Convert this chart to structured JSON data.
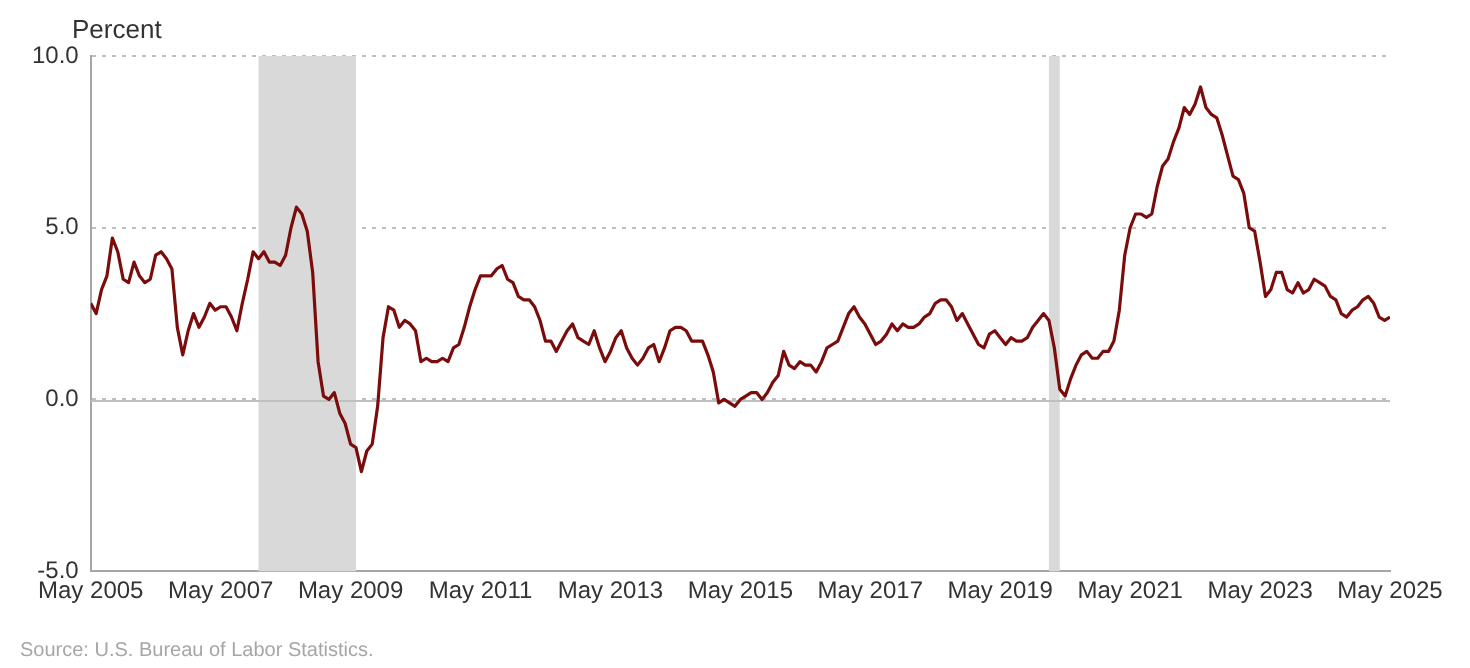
{
  "chart_data": {
    "type": "line",
    "ylabel": "Percent",
    "annotations": [
      "Source: U.S. Bureau of Labor Statistics."
    ],
    "x": [
      "2005-05",
      "2005-06",
      "2005-07",
      "2005-08",
      "2005-09",
      "2005-10",
      "2005-11",
      "2005-12",
      "2006-01",
      "2006-02",
      "2006-03",
      "2006-04",
      "2006-05",
      "2006-06",
      "2006-07",
      "2006-08",
      "2006-09",
      "2006-10",
      "2006-11",
      "2006-12",
      "2007-01",
      "2007-02",
      "2007-03",
      "2007-04",
      "2007-05",
      "2007-06",
      "2007-07",
      "2007-08",
      "2007-09",
      "2007-10",
      "2007-11",
      "2007-12",
      "2008-01",
      "2008-02",
      "2008-03",
      "2008-04",
      "2008-05",
      "2008-06",
      "2008-07",
      "2008-08",
      "2008-09",
      "2008-10",
      "2008-11",
      "2008-12",
      "2009-01",
      "2009-02",
      "2009-03",
      "2009-04",
      "2009-05",
      "2009-06",
      "2009-07",
      "2009-08",
      "2009-09",
      "2009-10",
      "2009-11",
      "2009-12",
      "2010-01",
      "2010-02",
      "2010-03",
      "2010-04",
      "2010-05",
      "2010-06",
      "2010-07",
      "2010-08",
      "2010-09",
      "2010-10",
      "2010-11",
      "2010-12",
      "2011-01",
      "2011-02",
      "2011-03",
      "2011-04",
      "2011-05",
      "2011-06",
      "2011-07",
      "2011-08",
      "2011-09",
      "2011-10",
      "2011-11",
      "2011-12",
      "2012-01",
      "2012-02",
      "2012-03",
      "2012-04",
      "2012-05",
      "2012-06",
      "2012-07",
      "2012-08",
      "2012-09",
      "2012-10",
      "2012-11",
      "2012-12",
      "2013-01",
      "2013-02",
      "2013-03",
      "2013-04",
      "2013-05",
      "2013-06",
      "2013-07",
      "2013-08",
      "2013-09",
      "2013-10",
      "2013-11",
      "2013-12",
      "2014-01",
      "2014-02",
      "2014-03",
      "2014-04",
      "2014-05",
      "2014-06",
      "2014-07",
      "2014-08",
      "2014-09",
      "2014-10",
      "2014-11",
      "2014-12",
      "2015-01",
      "2015-02",
      "2015-03",
      "2015-04",
      "2015-05",
      "2015-06",
      "2015-07",
      "2015-08",
      "2015-09",
      "2015-10",
      "2015-11",
      "2015-12",
      "2016-01",
      "2016-02",
      "2016-03",
      "2016-04",
      "2016-05",
      "2016-06",
      "2016-07",
      "2016-08",
      "2016-09",
      "2016-10",
      "2016-11",
      "2016-12",
      "2017-01",
      "2017-02",
      "2017-03",
      "2017-04",
      "2017-05",
      "2017-06",
      "2017-07",
      "2017-08",
      "2017-09",
      "2017-10",
      "2017-11",
      "2017-12",
      "2018-01",
      "2018-02",
      "2018-03",
      "2018-04",
      "2018-05",
      "2018-06",
      "2018-07",
      "2018-08",
      "2018-09",
      "2018-10",
      "2018-11",
      "2018-12",
      "2019-01",
      "2019-02",
      "2019-03",
      "2019-04",
      "2019-05",
      "2019-06",
      "2019-07",
      "2019-08",
      "2019-09",
      "2019-10",
      "2019-11",
      "2019-12",
      "2020-01",
      "2020-02",
      "2020-03",
      "2020-04",
      "2020-05",
      "2020-06",
      "2020-07",
      "2020-08",
      "2020-09",
      "2020-10",
      "2020-11",
      "2020-12",
      "2021-01",
      "2021-02",
      "2021-03",
      "2021-04",
      "2021-05",
      "2021-06",
      "2021-07",
      "2021-08",
      "2021-09",
      "2021-10",
      "2021-11",
      "2021-12",
      "2022-01",
      "2022-02",
      "2022-03",
      "2022-04",
      "2022-05",
      "2022-06",
      "2022-07",
      "2022-08",
      "2022-09",
      "2022-10",
      "2022-11",
      "2022-12",
      "2023-01",
      "2023-02",
      "2023-03",
      "2023-04",
      "2023-05",
      "2023-06",
      "2023-07",
      "2023-08",
      "2023-09",
      "2023-10",
      "2023-11",
      "2023-12",
      "2024-01",
      "2024-02",
      "2024-03",
      "2024-04",
      "2024-05",
      "2024-06",
      "2024-07",
      "2024-08",
      "2024-09",
      "2024-10",
      "2024-11",
      "2024-12",
      "2025-01",
      "2025-02",
      "2025-03",
      "2025-04",
      "2025-05"
    ],
    "series": [
      {
        "color": "#7b0c0c",
        "values": [
          2.8,
          2.5,
          3.2,
          3.6,
          4.7,
          4.3,
          3.5,
          3.4,
          4.0,
          3.6,
          3.4,
          3.5,
          4.2,
          4.3,
          4.1,
          3.8,
          2.1,
          1.3,
          2.0,
          2.5,
          2.1,
          2.4,
          2.8,
          2.6,
          2.7,
          2.7,
          2.4,
          2.0,
          2.8,
          3.5,
          4.3,
          4.1,
          4.3,
          4.0,
          4.0,
          3.9,
          4.2,
          5.0,
          5.6,
          5.4,
          4.9,
          3.7,
          1.1,
          0.1,
          0.0,
          0.2,
          -0.4,
          -0.7,
          -1.3,
          -1.4,
          -2.1,
          -1.5,
          -1.3,
          -0.2,
          1.8,
          2.7,
          2.6,
          2.1,
          2.3,
          2.2,
          2.0,
          1.1,
          1.2,
          1.1,
          1.1,
          1.2,
          1.1,
          1.5,
          1.6,
          2.1,
          2.7,
          3.2,
          3.6,
          3.6,
          3.6,
          3.8,
          3.9,
          3.5,
          3.4,
          3.0,
          2.9,
          2.9,
          2.7,
          2.3,
          1.7,
          1.7,
          1.4,
          1.7,
          2.0,
          2.2,
          1.8,
          1.7,
          1.6,
          2.0,
          1.5,
          1.1,
          1.4,
          1.8,
          2.0,
          1.5,
          1.2,
          1.0,
          1.2,
          1.5,
          1.6,
          1.1,
          1.5,
          2.0,
          2.1,
          2.1,
          2.0,
          1.7,
          1.7,
          1.7,
          1.3,
          0.8,
          -0.1,
          0.0,
          -0.1,
          -0.2,
          0.0,
          0.1,
          0.2,
          0.2,
          0.0,
          0.2,
          0.5,
          0.7,
          1.4,
          1.0,
          0.9,
          1.1,
          1.0,
          1.0,
          0.8,
          1.1,
          1.5,
          1.6,
          1.7,
          2.1,
          2.5,
          2.7,
          2.4,
          2.2,
          1.9,
          1.6,
          1.7,
          1.9,
          2.2,
          2.0,
          2.2,
          2.1,
          2.1,
          2.2,
          2.4,
          2.5,
          2.8,
          2.9,
          2.9,
          2.7,
          2.3,
          2.5,
          2.2,
          1.9,
          1.6,
          1.5,
          1.9,
          2.0,
          1.8,
          1.6,
          1.8,
          1.7,
          1.7,
          1.8,
          2.1,
          2.3,
          2.5,
          2.3,
          1.5,
          0.3,
          0.1,
          0.6,
          1.0,
          1.3,
          1.4,
          1.2,
          1.2,
          1.4,
          1.4,
          1.7,
          2.6,
          4.2,
          5.0,
          5.4,
          5.4,
          5.3,
          5.4,
          6.2,
          6.8,
          7.0,
          7.5,
          7.9,
          8.5,
          8.3,
          8.6,
          9.1,
          8.5,
          8.3,
          8.2,
          7.7,
          7.1,
          6.5,
          6.4,
          6.0,
          5.0,
          4.9,
          4.0,
          3.0,
          3.2,
          3.7,
          3.7,
          3.2,
          3.1,
          3.4,
          3.1,
          3.2,
          3.5,
          3.4,
          3.3,
          3.0,
          2.9,
          2.5,
          2.4,
          2.6,
          2.7,
          2.9,
          3.0,
          2.8,
          2.4,
          2.3,
          2.4
        ]
      }
    ],
    "xlim": [
      "2005-05",
      "2025-05"
    ],
    "xticks": [
      {
        "value": "2005-05",
        "label": "May 2005"
      },
      {
        "value": "2007-05",
        "label": "May 2007"
      },
      {
        "value": "2009-05",
        "label": "May 2009"
      },
      {
        "value": "2011-05",
        "label": "May 2011"
      },
      {
        "value": "2013-05",
        "label": "May 2013"
      },
      {
        "value": "2015-05",
        "label": "May 2015"
      },
      {
        "value": "2017-05",
        "label": "May 2017"
      },
      {
        "value": "2019-05",
        "label": "May 2019"
      },
      {
        "value": "2021-05",
        "label": "May 2021"
      },
      {
        "value": "2023-05",
        "label": "May 2023"
      },
      {
        "value": "2025-05",
        "label": "May 2025"
      }
    ],
    "ylim": [
      -5,
      10
    ],
    "yticks": [
      {
        "value": -5,
        "label": "-5.0"
      },
      {
        "value": 0,
        "label": "0.0"
      },
      {
        "value": 5,
        "label": "5.0"
      },
      {
        "value": 10,
        "label": "10.0"
      }
    ],
    "bands": [
      {
        "axis": "x",
        "from": "2007-12",
        "to": "2009-06",
        "color": "#d9d9d9"
      },
      {
        "axis": "x",
        "from": "2020-02",
        "to": "2020-04",
        "color": "#d9d9d9"
      }
    ],
    "ref_lines": [
      {
        "axis": "y",
        "value": 0,
        "color": "#bfbfbf",
        "line_style": "solid"
      }
    ],
    "grid": "y",
    "legend": false,
    "marker": "none",
    "line_style": "solid"
  }
}
